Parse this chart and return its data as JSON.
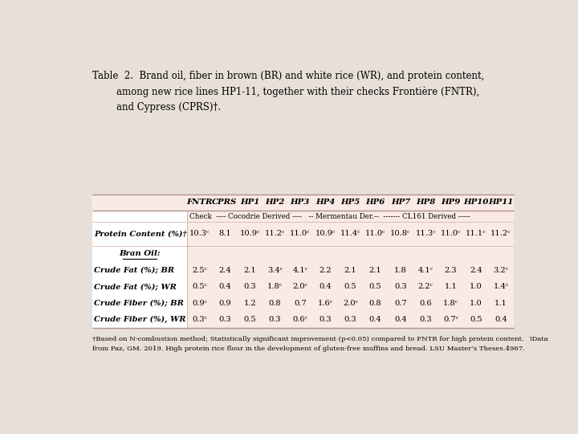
{
  "title_line1": "Table  2.  Brand oil, fiber in brown (BR) and white rice (WR), and protein content,",
  "title_line2": "        among new rice lines HP1-11, together with their checks Frontière (FNTR),",
  "title_line3": "        and Cypress (CPRS)†.",
  "col_headers": [
    "FNTR",
    "CPRS",
    "HP1",
    "HP2",
    "HP3",
    "HP4",
    "HP5",
    "HP6",
    "HP7",
    "HP8",
    "HP9",
    "HP10",
    "HP11"
  ],
  "sub_header": "Check  ---- Cocodrie Derived ----   -- Mermentau Der.--  ------- CL161 Derived -----",
  "bg_color": "#faeae6",
  "white_color": "#ffffff",
  "border_color": "#c8a898",
  "rows": [
    {
      "label": "Protein Content (%)†",
      "label_style": "italic",
      "values": [
        "10.3ᶜ",
        "8.1",
        "10.9ᶜ",
        "11.2ᶜ",
        "11.0ᶜ",
        "10.9ᶜ",
        "11.4ᶜ",
        "11.0ᶜ",
        "10.8ᶜ",
        "11.3ᶜ",
        "11.0ᶜ",
        "11.1ᶜ",
        "11.2ᶜ"
      ]
    },
    {
      "label": "Bran Oil:",
      "label_style": "italic_underline",
      "values": [
        "",
        "",
        "",
        "",
        "",
        "",
        "",
        "",
        "",
        "",
        "",
        "",
        ""
      ]
    },
    {
      "label": "Crude Fat (%); BR",
      "label_style": "italic",
      "values": [
        "2.5ᶜ",
        "2.4",
        "2.1",
        "3.4ᶜ",
        "4.1ᶜ",
        "2.2",
        "2.1",
        "2.1",
        "1.8",
        "4.1ᶜ",
        "2.3",
        "2.4",
        "3.2ᶜ"
      ]
    },
    {
      "label": "Crude Fat (%); WR",
      "label_style": "italic",
      "values": [
        "0.5ᶜ",
        "0.4",
        "0.3",
        "1.8ᶜ",
        "2.0ᶜ",
        "0.4",
        "0.5",
        "0.5",
        "0.3",
        "2.2ᶜ",
        "1.1",
        "1.0",
        "1.4ᶜ"
      ]
    },
    {
      "label": "Crude Fiber (%); BR",
      "label_style": "italic",
      "values": [
        "0.9ᶜ",
        "0.9",
        "1.2",
        "0.8",
        "0.7",
        "1.6ᶜ",
        "2.0ᶜ",
        "0.8",
        "0.7",
        "0.6",
        "1.8ᶜ",
        "1.0",
        "1.1"
      ]
    },
    {
      "label": "Crude Fiber (%), WR",
      "label_style": "italic",
      "values": [
        "0.3ᶜ",
        "0.3",
        "0.5",
        "0.3",
        "0.6ᶜ",
        "0.3",
        "0.3",
        "0.4",
        "0.4",
        "0.3",
        "0.7ᶜ",
        "0.5",
        "0.4"
      ]
    }
  ],
  "footnote_line1": "†Based on N-combustion method; Statistically significant improvement (p<0.05) compared to FNTR for high protein content.  ˥Data",
  "footnote_line2": "from Paz, GM. 2019. High protein rice flour in the development of gluten-free muffins and bread. LSU Master’s Theses.4967.",
  "page_bg": "#e8e0d8"
}
